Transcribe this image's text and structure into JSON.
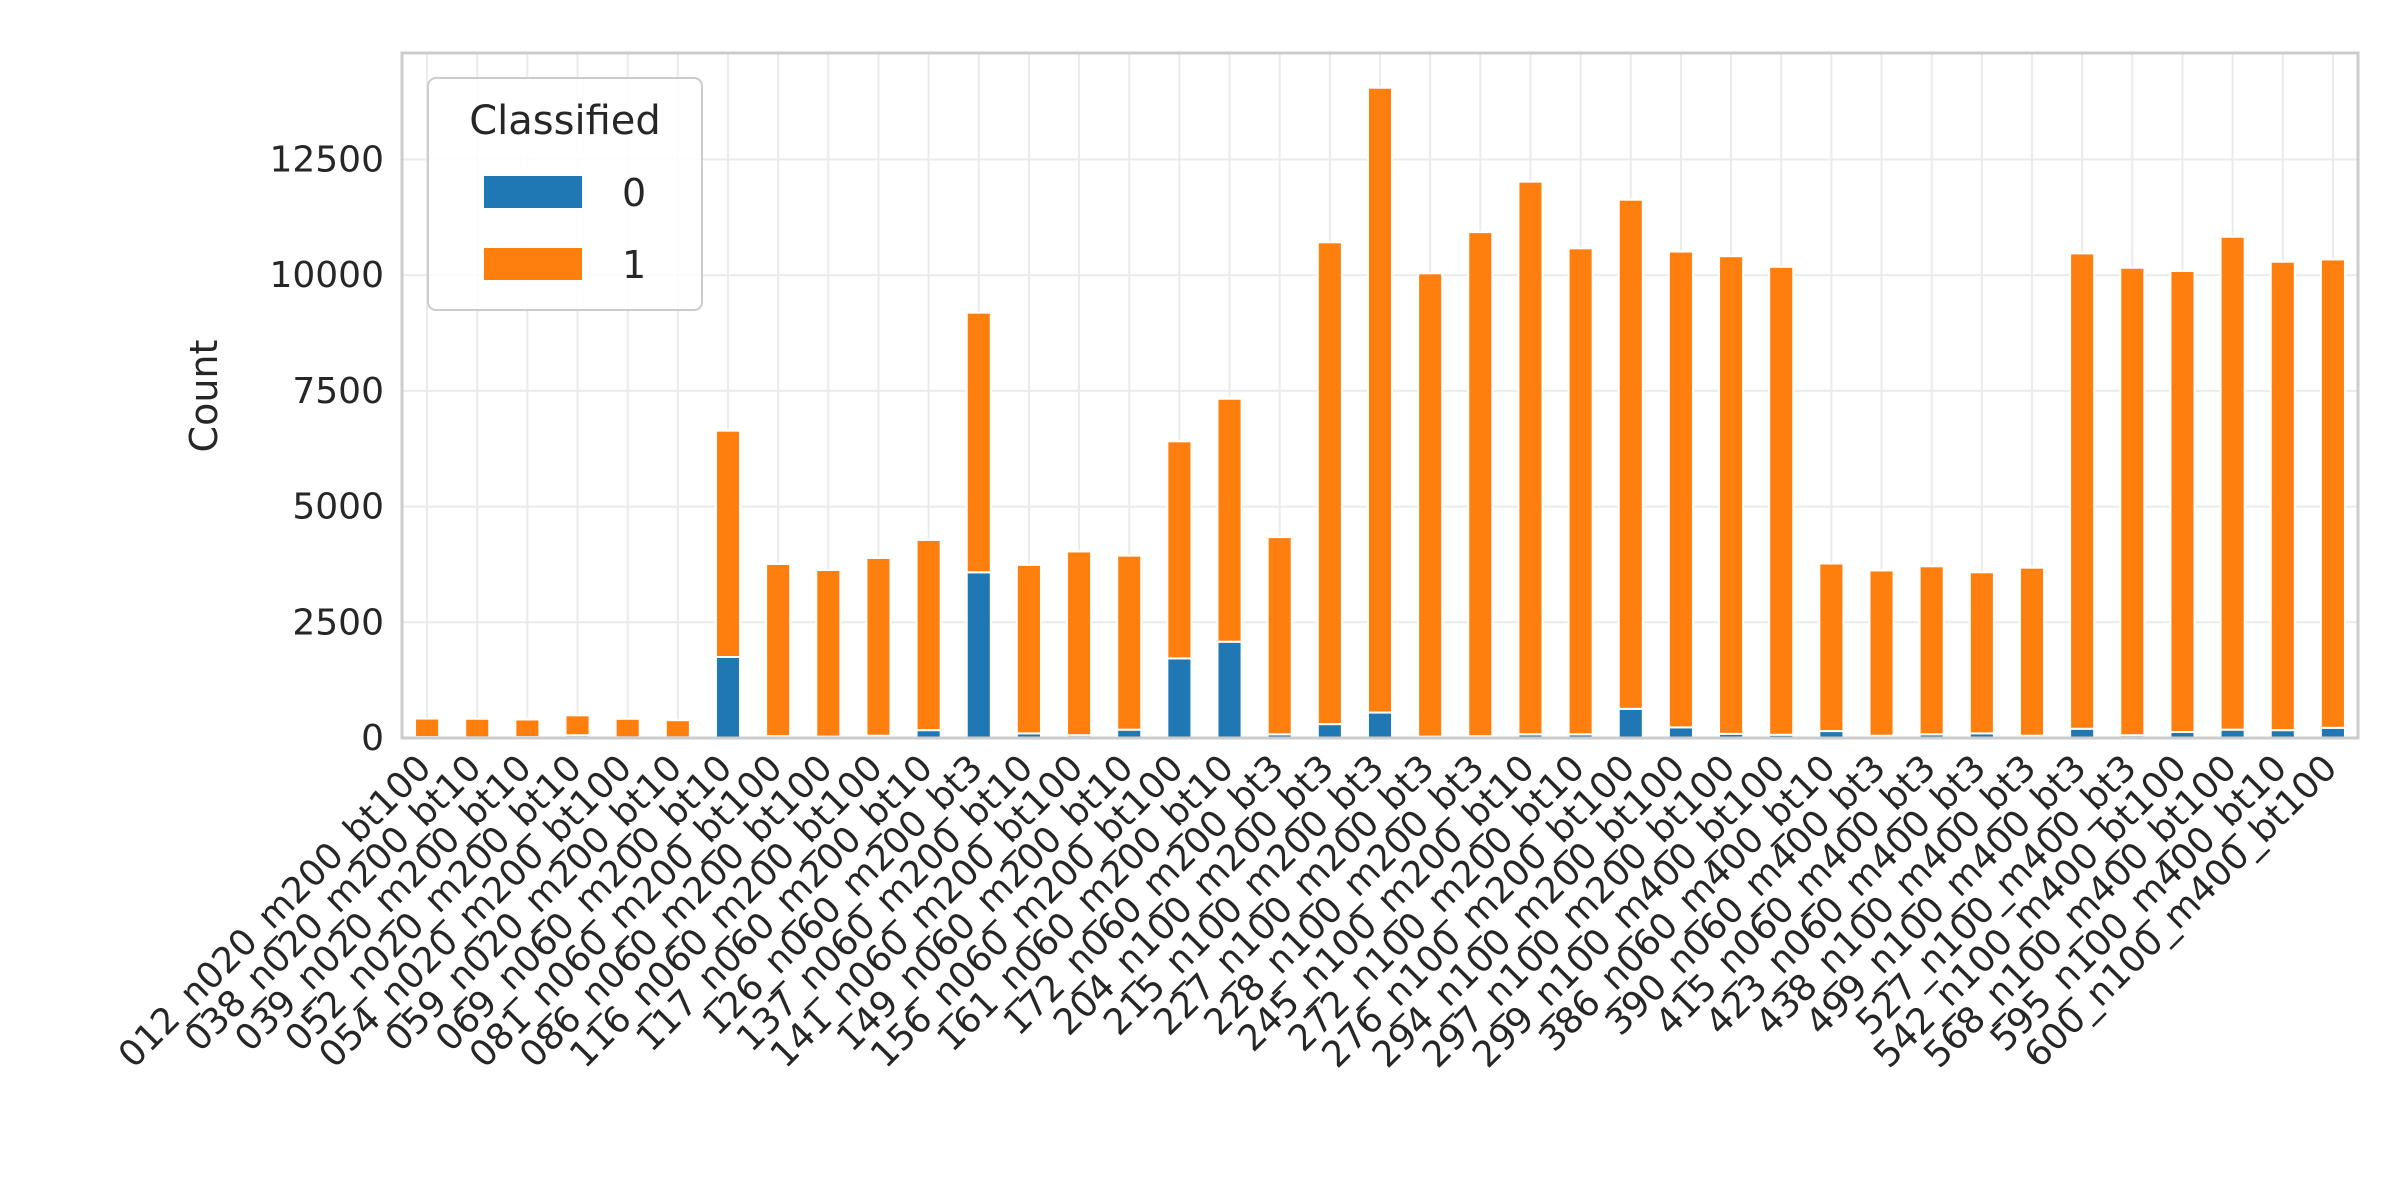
{
  "chart_data": {
    "type": "bar",
    "stacked": true,
    "title": "",
    "xlabel": "",
    "ylabel": "Count",
    "ylim": [
      0,
      14800
    ],
    "yticks": [
      0,
      2500,
      5000,
      7500,
      10000,
      12500
    ],
    "grid": true,
    "legend": {
      "title": "Classified",
      "placement": "top-left"
    },
    "categories": [
      "012_n020_m200_bt100",
      "038_n020_m200_bt10",
      "039_n020_m200_bt10",
      "052_n020_m200_bt10",
      "054_n020_m200_bt100",
      "059_n020_m200_bt10",
      "069_n060_m200_bt10",
      "081_n060_m200_bt100",
      "086_n060_m200_bt100",
      "116_n060_m200_bt100",
      "117_n060_m200_bt10",
      "126_n060_m200_bt3",
      "137_n060_m200_bt10",
      "141_n060_m200_bt100",
      "149_n060_m200_bt10",
      "156_n060_m200_bt100",
      "161_n060_m200_bt10",
      "172_n060_m200_bt3",
      "204_n100_m200_bt3",
      "215_n100_m200_bt3",
      "227_n100_m200_bt3",
      "228_n100_m200_bt3",
      "245_n100_m200_bt10",
      "272_n100_m200_bt10",
      "276_n100_m200_bt100",
      "294_n100_m200_bt100",
      "297_n100_m200_bt100",
      "299_n100_m400_bt100",
      "386_n060_m400_bt10",
      "390_n060_m400_bt3",
      "415_n060_m400_bt3",
      "423_n060_m400_bt3",
      "438_n100_m400_bt3",
      "499_n100_m400_bt3",
      "527_n100_m400_bt3",
      "542_n100_m400_bt100",
      "568_n100_m400_bt100",
      "595_n100_m400_bt10",
      "600_n100_m400_bt100"
    ],
    "series": [
      {
        "name": "0",
        "color": "#1f77b4",
        "values": [
          20,
          15,
          20,
          60,
          15,
          15,
          1750,
          40,
          30,
          50,
          170,
          3580,
          100,
          60,
          180,
          1720,
          2080,
          80,
          300,
          550,
          30,
          40,
          80,
          80,
          630,
          230,
          90,
          70,
          150,
          50,
          80,
          100,
          50,
          200,
          60,
          130,
          180,
          170,
          220
        ]
      },
      {
        "name": "1",
        "color": "#ff7f0e",
        "values": [
          400,
          400,
          380,
          430,
          400,
          370,
          4890,
          3720,
          3600,
          3840,
          4110,
          5610,
          3640,
          3970,
          3760,
          4690,
          5250,
          4260,
          10410,
          13500,
          10010,
          10890,
          11940,
          10500,
          11000,
          10280,
          10320,
          10110,
          3620,
          3570,
          3630,
          3480,
          3630,
          10270,
          10100,
          9960,
          10650,
          10120,
          10120
        ]
      }
    ]
  }
}
